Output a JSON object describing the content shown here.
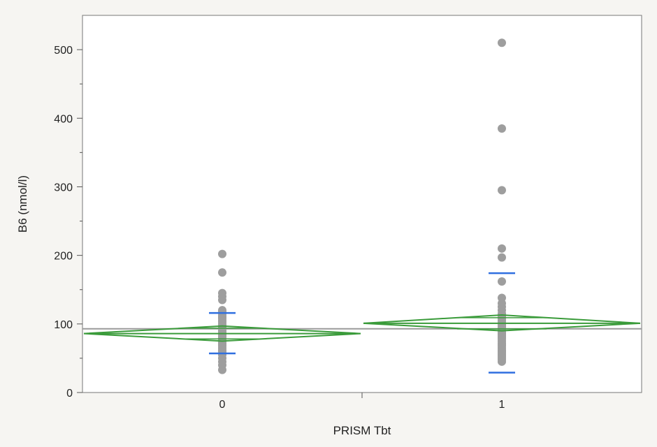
{
  "chart_data": {
    "type": "scatter",
    "xlabel": "PRISM Tbt",
    "ylabel": "B6 (nmol/l)",
    "categories": [
      "0",
      "1"
    ],
    "ylim": [
      0,
      550
    ],
    "yticks": [
      0,
      100,
      200,
      300,
      400,
      500
    ],
    "grand_mean": 93,
    "groups": [
      {
        "category": "0",
        "values": [
          202,
          175,
          145,
          140,
          135,
          120,
          118,
          115,
          112,
          110,
          108,
          105,
          103,
          100,
          98,
          96,
          94,
          92,
          90,
          88,
          86,
          84,
          82,
          80,
          78,
          76,
          74,
          72,
          70,
          68,
          65,
          62,
          60,
          57,
          55,
          50,
          45,
          40,
          33
        ],
        "mean": 86,
        "ci": [
          75,
          97
        ],
        "sd_range": [
          57,
          116
        ],
        "point_color": "#9e9e9e",
        "diamond_color": "#3a9b3a",
        "sd_color": "#2f6fe0"
      },
      {
        "category": "1",
        "values": [
          510,
          385,
          295,
          210,
          197,
          162,
          138,
          130,
          125,
          120,
          115,
          112,
          110,
          108,
          105,
          102,
          100,
          98,
          96,
          94,
          92,
          90,
          88,
          86,
          84,
          82,
          80,
          78,
          75,
          72,
          70,
          68,
          65,
          62,
          60,
          58,
          56,
          54,
          52,
          50,
          48,
          45
        ],
        "mean": 101,
        "ci": [
          90,
          113
        ],
        "sd_range": [
          29,
          174
        ],
        "point_color": "#9e9e9e",
        "diamond_color": "#3a9b3a",
        "sd_color": "#2f6fe0"
      }
    ],
    "colors": {
      "grand_mean_line": "#9a9a9a",
      "axis": "#555555",
      "plot_background": "#ffffff"
    }
  }
}
